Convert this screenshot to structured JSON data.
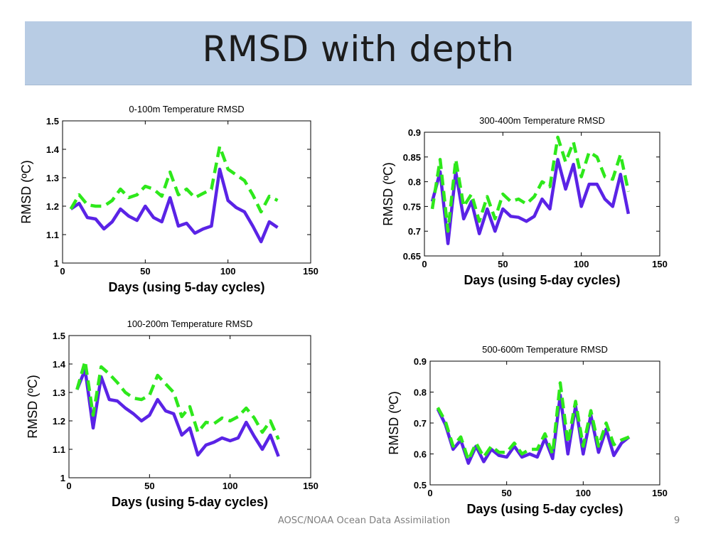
{
  "slide": {
    "title": "RMSD with depth",
    "footer": "AOSC/NOAA Ocean Data Assimilation",
    "page_number": "9"
  },
  "colors": {
    "series_solid": "#5a23e6",
    "series_dashed": "#2ee81b"
  },
  "chart_data": [
    {
      "type": "line",
      "title": "0-100m Temperature RMSD",
      "xlabel": "Days (using 5-day cycles)",
      "ylabel": "RMSD (ºC)",
      "xlim": [
        0,
        150
      ],
      "ylim": [
        1,
        1.5
      ],
      "xticks": [
        "0",
        "50",
        "100",
        "150"
      ],
      "yticks": [
        "1",
        "1.1",
        "1.2",
        "1.3",
        "1.4",
        "1.5"
      ],
      "grid": false,
      "series": [
        {
          "style": "solid",
          "x": [
            5,
            10,
            15,
            20,
            25,
            30,
            35,
            40,
            45,
            50,
            55,
            60,
            65,
            70,
            75,
            80,
            85,
            90,
            95,
            100,
            105,
            110,
            115,
            120,
            125,
            130
          ],
          "y": [
            1.19,
            1.21,
            1.16,
            1.155,
            1.12,
            1.145,
            1.19,
            1.165,
            1.15,
            1.2,
            1.16,
            1.145,
            1.23,
            1.13,
            1.14,
            1.105,
            1.12,
            1.13,
            1.33,
            1.22,
            1.195,
            1.18,
            1.13,
            1.075,
            1.145,
            1.125
          ]
        },
        {
          "style": "dashed",
          "x": [
            5,
            10,
            15,
            20,
            25,
            30,
            35,
            40,
            45,
            50,
            55,
            60,
            65,
            70,
            75,
            80,
            85,
            90,
            95,
            100,
            105,
            110,
            115,
            120,
            125,
            130
          ],
          "y": [
            1.19,
            1.24,
            1.205,
            1.2,
            1.2,
            1.22,
            1.26,
            1.23,
            1.24,
            1.27,
            1.26,
            1.235,
            1.32,
            1.24,
            1.26,
            1.23,
            1.245,
            1.26,
            1.41,
            1.33,
            1.31,
            1.29,
            1.24,
            1.18,
            1.235,
            1.22
          ]
        }
      ]
    },
    {
      "type": "line",
      "title": "300-400m Temperature RMSD",
      "xlabel": "Days (using 5-day cycles)",
      "ylabel": "RMSD (ºC)",
      "xlim": [
        0,
        150
      ],
      "ylim": [
        0.65,
        0.9
      ],
      "xticks": [
        "0",
        "50",
        "100",
        "150"
      ],
      "yticks": [
        "0.65",
        "0.7",
        "0.75",
        "0.8",
        "0.85",
        "0.9"
      ],
      "grid": false,
      "series": [
        {
          "style": "solid",
          "x": [
            5,
            10,
            15,
            20,
            25,
            30,
            35,
            40,
            45,
            50,
            55,
            60,
            65,
            70,
            75,
            80,
            85,
            90,
            95,
            100,
            105,
            110,
            115,
            120,
            125,
            130
          ],
          "y": [
            0.76,
            0.82,
            0.675,
            0.82,
            0.725,
            0.76,
            0.695,
            0.745,
            0.7,
            0.745,
            0.73,
            0.728,
            0.72,
            0.73,
            0.765,
            0.745,
            0.845,
            0.785,
            0.835,
            0.75,
            0.795,
            0.795,
            0.765,
            0.75,
            0.815,
            0.735
          ]
        },
        {
          "style": "dashed",
          "x": [
            5,
            10,
            15,
            20,
            25,
            30,
            35,
            40,
            45,
            50,
            55,
            60,
            65,
            70,
            75,
            80,
            85,
            90,
            95,
            100,
            105,
            110,
            115,
            120,
            125,
            130
          ],
          "y": [
            0.745,
            0.845,
            0.7,
            0.845,
            0.75,
            0.775,
            0.72,
            0.77,
            0.725,
            0.775,
            0.76,
            0.765,
            0.755,
            0.77,
            0.8,
            0.79,
            0.89,
            0.84,
            0.88,
            0.81,
            0.86,
            0.85,
            0.81,
            0.805,
            0.855,
            0.78
          ]
        }
      ]
    },
    {
      "type": "line",
      "title": "100-200m Temperature RMSD",
      "xlabel": "Days (using 5-day cycles)",
      "ylabel": "RMSD (ºC)",
      "xlim": [
        0,
        150
      ],
      "ylim": [
        1,
        1.5
      ],
      "xticks": [
        "0",
        "50",
        "100",
        "150"
      ],
      "yticks": [
        "1",
        "1.1",
        "1.2",
        "1.3",
        "1.4",
        "1.5"
      ],
      "grid": false,
      "series": [
        {
          "style": "solid",
          "x": [
            5,
            10,
            15,
            20,
            25,
            30,
            35,
            40,
            45,
            50,
            55,
            60,
            65,
            70,
            75,
            80,
            85,
            90,
            95,
            100,
            105,
            110,
            115,
            120,
            125,
            130
          ],
          "y": [
            1.31,
            1.38,
            1.175,
            1.355,
            1.275,
            1.27,
            1.245,
            1.225,
            1.2,
            1.22,
            1.275,
            1.235,
            1.225,
            1.15,
            1.175,
            1.08,
            1.115,
            1.125,
            1.14,
            1.13,
            1.14,
            1.195,
            1.145,
            1.1,
            1.15,
            1.075
          ]
        },
        {
          "style": "dashed",
          "x": [
            5,
            10,
            15,
            20,
            25,
            30,
            35,
            40,
            45,
            50,
            55,
            60,
            65,
            70,
            75,
            80,
            85,
            90,
            95,
            100,
            105,
            110,
            115,
            120,
            125,
            130
          ],
          "y": [
            1.31,
            1.41,
            1.22,
            1.39,
            1.365,
            1.335,
            1.3,
            1.28,
            1.275,
            1.29,
            1.36,
            1.33,
            1.3,
            1.215,
            1.25,
            1.16,
            1.195,
            1.19,
            1.21,
            1.2,
            1.215,
            1.245,
            1.21,
            1.16,
            1.2,
            1.135
          ]
        }
      ]
    },
    {
      "type": "line",
      "title": "500-600m Temperature RMSD",
      "xlabel": "Days (using 5-day cycles)",
      "ylabel": "RMSD (ºC)",
      "xlim": [
        0,
        150
      ],
      "ylim": [
        0.5,
        0.9
      ],
      "xticks": [
        "0",
        "50",
        "100",
        "150"
      ],
      "yticks": [
        "0.5",
        "0.6",
        "0.7",
        "0.8",
        "0.9"
      ],
      "grid": false,
      "series": [
        {
          "style": "solid",
          "x": [
            5,
            10,
            15,
            20,
            25,
            30,
            35,
            40,
            45,
            50,
            55,
            60,
            65,
            70,
            75,
            80,
            85,
            90,
            95,
            100,
            105,
            110,
            115,
            120,
            125,
            130
          ],
          "y": [
            0.745,
            0.695,
            0.615,
            0.645,
            0.57,
            0.625,
            0.575,
            0.615,
            0.595,
            0.59,
            0.625,
            0.59,
            0.6,
            0.59,
            0.65,
            0.585,
            0.79,
            0.6,
            0.755,
            0.6,
            0.725,
            0.605,
            0.68,
            0.595,
            0.635,
            0.655
          ]
        },
        {
          "style": "dashed",
          "x": [
            5,
            10,
            15,
            20,
            25,
            30,
            35,
            40,
            45,
            50,
            55,
            60,
            65,
            70,
            75,
            80,
            85,
            90,
            95,
            100,
            105,
            110,
            115,
            120,
            125,
            130
          ],
          "y": [
            0.75,
            0.705,
            0.625,
            0.655,
            0.58,
            0.635,
            0.59,
            0.625,
            0.605,
            0.605,
            0.635,
            0.6,
            0.615,
            0.615,
            0.665,
            0.6,
            0.83,
            0.635,
            0.77,
            0.625,
            0.74,
            0.625,
            0.7,
            0.63,
            0.645,
            0.655
          ]
        }
      ]
    }
  ]
}
